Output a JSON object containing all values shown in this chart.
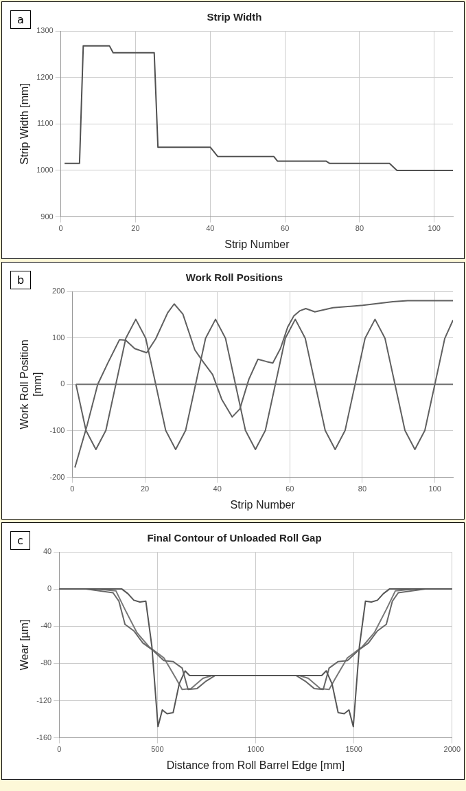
{
  "chart_data": [
    {
      "type": "line",
      "title": "Strip Width",
      "xlabel": "Strip Number",
      "ylabel": "Strip Width [mm]",
      "annotations": [
        "a"
      ],
      "xlim": [
        0,
        105
      ],
      "xticks": [
        0,
        20,
        40,
        60,
        80,
        100
      ],
      "ylim": [
        900,
        1300
      ],
      "yticks": [
        900,
        1000,
        1100,
        1200,
        1300
      ],
      "grid": true,
      "series": [
        {
          "color": "#505050",
          "x": [
            1,
            5,
            6,
            13,
            14,
            25,
            26,
            40,
            42,
            57,
            58,
            71,
            72,
            88,
            90,
            105
          ],
          "values": [
            1015,
            1015,
            1268,
            1268,
            1253,
            1253,
            1050,
            1050,
            1030,
            1030,
            1020,
            1020,
            1015,
            1015,
            1000,
            1000
          ]
        }
      ]
    },
    {
      "type": "line",
      "title": "Work Roll Positions",
      "xlabel": "Strip Number",
      "ylabel": "Work Roll Position [mm]",
      "annotations": [
        "b"
      ],
      "xlim": [
        0,
        105
      ],
      "xticks": [
        0,
        20,
        40,
        60,
        80,
        100
      ],
      "ylim": [
        -200,
        200
      ],
      "yticks": [
        -200,
        -100,
        0,
        100,
        200
      ],
      "grid": true,
      "series": [
        {
          "color": "#707070",
          "x": [
            1,
            105
          ],
          "values": [
            0,
            0
          ]
        },
        {
          "color": "#606060",
          "x": [
            1,
            3.75,
            6.5,
            9.25,
            12,
            14.75,
            17.5,
            20.25,
            23,
            25.75,
            28.5,
            31.25,
            34,
            36.75,
            39.5,
            42.25,
            45,
            47.75,
            50.5,
            53.25,
            56,
            58.75,
            61.5,
            64.25,
            67,
            69.75,
            72.5,
            75.25,
            78,
            80.75,
            83.5,
            86.25,
            89,
            91.75,
            94.5,
            97.25,
            100,
            102.75,
            105
          ],
          "values": [
            0,
            -99,
            -140,
            -99,
            0,
            99,
            140,
            99,
            0,
            -99,
            -140,
            -99,
            0,
            99,
            140,
            99,
            0,
            -99,
            -140,
            -99,
            0,
            99,
            140,
            99,
            0,
            -99,
            -140,
            -99,
            0,
            99,
            140,
            99,
            0,
            -99,
            -140,
            -99,
            0,
            99,
            138
          ]
        },
        {
          "color": "#606060",
          "x": [
            0.7,
            4,
            7,
            9.8,
            13,
            14.7,
            17.2,
            20.5,
            23,
            26.3,
            28.1,
            30.5,
            33.8,
            36.3,
            38.7,
            41.2,
            44.1,
            46.2,
            48.7,
            51.2,
            53.6,
            55.3,
            57.4,
            59.4,
            61.1,
            62.7,
            64.4,
            66.9,
            71.9,
            80.1,
            88.4,
            92.5,
            105
          ],
          "values": [
            -179,
            -90,
            0,
            46,
            96,
            95,
            77,
            68,
            98,
            154,
            173,
            151,
            74,
            46,
            21,
            -32,
            -70,
            -53,
            11,
            54,
            49,
            46,
            77,
            123,
            147,
            158,
            163,
            156,
            165,
            170,
            178,
            180,
            180
          ]
        }
      ]
    },
    {
      "type": "line",
      "title": "Final Contour of Unloaded Roll Gap",
      "xlabel": "Distance from Roll Barrel Edge [mm]",
      "ylabel": "Wear [µm]",
      "annotations": [
        "c"
      ],
      "xlim": [
        0,
        2000
      ],
      "xticks": [
        0,
        500,
        1000,
        1500,
        2000
      ],
      "ylim": [
        -160,
        40
      ],
      "yticks": [
        -160,
        -120,
        -80,
        -40,
        0,
        40
      ],
      "grid": true,
      "series": [
        {
          "color": "#555555",
          "x": [
            0,
            289,
            319,
            350,
            380,
            411,
            441,
            472,
            503,
            525,
            549,
            580,
            611,
            641,
            664,
            1336,
            1359,
            1389,
            1420,
            1451,
            1475,
            1497,
            1528,
            1559,
            1589,
            1620,
            1650,
            1681,
            1711,
            2000
          ],
          "values": [
            0,
            0,
            0,
            -5,
            -12,
            -14,
            -13,
            -62,
            -148,
            -130,
            -134,
            -133,
            -102,
            -88,
            -93,
            -93,
            -88,
            -102,
            -133,
            -134,
            -130,
            -148,
            -62,
            -13,
            -14,
            -12,
            -5,
            0,
            0,
            0
          ]
        },
        {
          "color": "#666666",
          "x": [
            0,
            136,
            274,
            304,
            335,
            380,
            426,
            472,
            533,
            580,
            626,
            656,
            702,
            748,
            794,
            1206,
            1252,
            1298,
            1344,
            1374,
            1420,
            1467,
            1528,
            1574,
            1620,
            1665,
            1696,
            1726,
            1864,
            2000
          ],
          "values": [
            0,
            0,
            -4,
            -13,
            -38,
            -45,
            -58,
            -65,
            -77,
            -78,
            -85,
            -108,
            -107,
            -99,
            -93,
            -93,
            -99,
            -107,
            -108,
            -85,
            -78,
            -77,
            -65,
            -58,
            -45,
            -38,
            -13,
            -4,
            0,
            0
          ]
        },
        {
          "color": "#777777",
          "x": [
            0,
            182,
            289,
            335,
            396,
            457,
            533,
            594,
            626,
            671,
            732,
            778,
            1222,
            1268,
            1329,
            1374,
            1406,
            1467,
            1543,
            1604,
            1665,
            1711,
            1818,
            2000
          ],
          "values": [
            0,
            0,
            -2,
            -22,
            -47,
            -62,
            -74,
            -96,
            -108,
            -107,
            -96,
            -93,
            -93,
            -96,
            -107,
            -108,
            -96,
            -74,
            -62,
            -47,
            -22,
            -2,
            0,
            0
          ]
        }
      ]
    }
  ]
}
